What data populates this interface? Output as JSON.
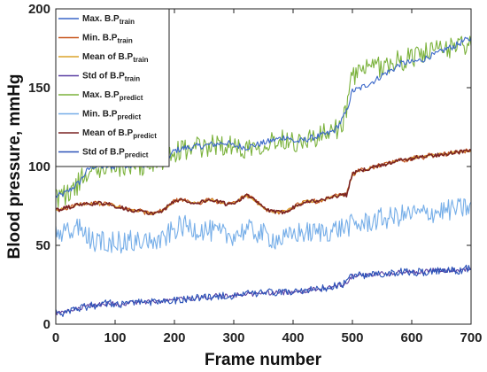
{
  "chart_data": {
    "type": "line",
    "xlabel": "Frame number",
    "ylabel": "Blood pressure, mmHg",
    "xlim": [
      0,
      700
    ],
    "ylim": [
      0,
      200
    ],
    "xticks": [
      "0",
      "100",
      "200",
      "300",
      "400",
      "500",
      "600",
      "700"
    ],
    "yticks": [
      "0",
      "50",
      "100",
      "150",
      "200"
    ],
    "grid": false,
    "legend_position": "top-left",
    "x_step": 10,
    "series": [
      {
        "name": "Max. B.P",
        "sub": "train",
        "color": "#3a67c9",
        "values": [
          81,
          82,
          84,
          87,
          90,
          96,
          100,
          100,
          100,
          100,
          100,
          101,
          101,
          101,
          102,
          101,
          101,
          102,
          103,
          106,
          110,
          111,
          112,
          112,
          113,
          113,
          114,
          114,
          115,
          115,
          113,
          113,
          112,
          113,
          114,
          115,
          116,
          117,
          118,
          119,
          116,
          116,
          117,
          118,
          119,
          120,
          121,
          123,
          128,
          135,
          148,
          149,
          151,
          153,
          155,
          158,
          160,
          162,
          165,
          166,
          166,
          167,
          168,
          170,
          171,
          173,
          175,
          176,
          178,
          180,
          181
        ]
      },
      {
        "name": "Min. B.P",
        "sub": "train",
        "color": "#c7561c",
        "values": [
          72,
          73,
          74,
          75,
          76,
          76,
          76,
          77,
          76,
          76,
          75,
          74,
          73,
          72,
          72,
          71,
          70,
          71,
          72,
          75,
          78,
          79,
          78,
          77,
          77,
          78,
          79,
          78,
          77,
          76,
          77,
          79,
          82,
          80,
          77,
          74,
          72,
          71,
          71,
          72,
          74,
          76,
          78,
          78,
          78,
          79,
          80,
          81,
          82,
          82,
          95,
          97,
          98,
          99,
          100,
          101,
          102,
          103,
          104,
          104,
          105,
          106,
          106,
          107,
          107,
          108,
          108,
          109,
          109,
          110,
          110
        ]
      },
      {
        "name": "Mean of B.P",
        "sub": "train",
        "color": "#dca32a",
        "values": [
          72,
          73,
          74,
          75,
          76,
          76,
          76,
          77,
          76,
          76,
          75,
          74,
          73,
          72,
          72,
          71,
          70,
          71,
          72,
          75,
          78,
          79,
          78,
          77,
          77,
          78,
          79,
          78,
          77,
          76,
          77,
          79,
          82,
          80,
          77,
          74,
          72,
          71,
          71,
          72,
          74,
          76,
          78,
          78,
          78,
          79,
          80,
          81,
          82,
          82,
          95,
          97,
          98,
          99,
          100,
          101,
          102,
          103,
          104,
          104,
          105,
          106,
          106,
          107,
          107,
          108,
          108,
          109,
          109,
          110,
          110
        ]
      },
      {
        "name": "Std of B.P",
        "sub": "train",
        "color": "#5a3fa3",
        "values": [
          7,
          7,
          8,
          9,
          10,
          11,
          12,
          12,
          13,
          13,
          13,
          13,
          13,
          14,
          14,
          14,
          14,
          14,
          15,
          15,
          15,
          16,
          16,
          16,
          17,
          17,
          17,
          18,
          18,
          18,
          18,
          19,
          19,
          19,
          19,
          20,
          20,
          20,
          20,
          20,
          21,
          21,
          21,
          22,
          22,
          23,
          23,
          24,
          25,
          26,
          31,
          31,
          31,
          31,
          32,
          32,
          32,
          32,
          33,
          33,
          33,
          33,
          33,
          34,
          34,
          34,
          34,
          34,
          34,
          35,
          35
        ]
      },
      {
        "name": "Max. B.P",
        "sub": "predict",
        "color": "#7bb23c",
        "values": [
          81,
          81,
          83,
          86,
          90,
          95,
          99,
          99,
          100,
          100,
          100,
          100,
          101,
          101,
          101,
          101,
          102,
          102,
          103,
          105,
          109,
          110,
          111,
          111,
          112,
          112,
          113,
          114,
          114,
          114,
          112,
          112,
          112,
          113,
          114,
          115,
          115,
          117,
          117,
          118,
          116,
          116,
          117,
          118,
          118,
          120,
          121,
          122,
          127,
          134,
          158,
          160,
          161,
          162,
          163,
          164,
          165,
          166,
          167,
          168,
          170,
          171,
          172,
          172,
          173,
          174,
          175,
          176,
          177,
          178,
          179
        ]
      },
      {
        "name": "Min. B.P",
        "sub": "predict",
        "color": "#76aee8",
        "values": [
          57,
          57,
          58,
          60,
          62,
          58,
          52,
          52,
          53,
          52,
          52,
          52,
          52,
          53,
          53,
          53,
          52,
          52,
          53,
          57,
          60,
          62,
          62,
          61,
          60,
          60,
          59,
          58,
          57,
          56,
          57,
          58,
          60,
          59,
          58,
          57,
          55,
          54,
          54,
          54,
          57,
          58,
          58,
          58,
          58,
          59,
          59,
          60,
          61,
          62,
          63,
          63,
          64,
          65,
          66,
          67,
          67,
          68,
          69,
          69,
          70,
          70,
          70,
          71,
          71,
          72,
          72,
          73,
          73,
          74,
          74
        ]
      },
      {
        "name": "Mean of B.P",
        "sub": "predict",
        "color": "#7a2323",
        "values": [
          72,
          73,
          74,
          75,
          76,
          76,
          76,
          77,
          76,
          76,
          75,
          74,
          73,
          72,
          72,
          71,
          70,
          71,
          72,
          75,
          78,
          79,
          78,
          77,
          77,
          78,
          79,
          78,
          77,
          76,
          77,
          79,
          82,
          80,
          77,
          74,
          72,
          71,
          71,
          72,
          74,
          76,
          78,
          78,
          78,
          79,
          80,
          81,
          82,
          82,
          95,
          97,
          98,
          99,
          100,
          101,
          102,
          103,
          104,
          104,
          105,
          106,
          106,
          107,
          107,
          108,
          108,
          109,
          109,
          110,
          110
        ]
      },
      {
        "name": "Std of B.P",
        "sub": "predict",
        "color": "#2b53b8",
        "values": [
          7,
          7,
          8,
          9,
          10,
          11,
          12,
          12,
          13,
          13,
          13,
          13,
          13,
          14,
          14,
          14,
          14,
          14,
          15,
          15,
          15,
          16,
          16,
          16,
          17,
          17,
          17,
          18,
          18,
          18,
          18,
          19,
          19,
          19,
          19,
          20,
          20,
          20,
          20,
          20,
          21,
          21,
          21,
          22,
          22,
          23,
          23,
          24,
          25,
          26,
          31,
          31,
          31,
          31,
          32,
          32,
          32,
          32,
          33,
          33,
          33,
          33,
          33,
          34,
          34,
          34,
          34,
          34,
          34,
          35,
          35
        ]
      }
    ]
  }
}
